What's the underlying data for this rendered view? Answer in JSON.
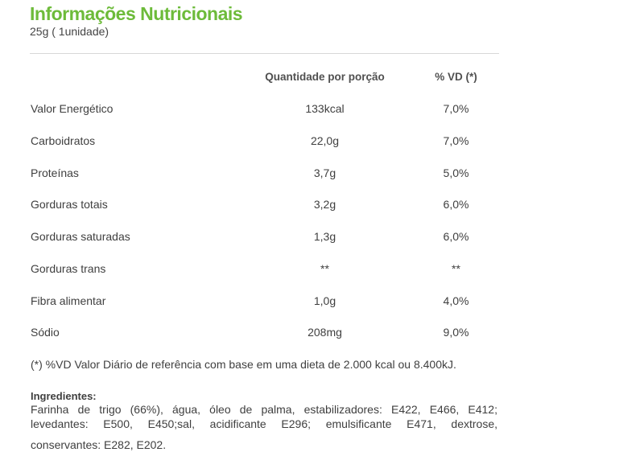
{
  "title": "Informações Nutricionais",
  "portion": "25g ( 1unidade)",
  "table": {
    "headers": {
      "quantity": "Quantidade por porção",
      "vd": "% VD (*)"
    },
    "rows": [
      {
        "name": "Valor Energético",
        "quantity": "133kcal",
        "vd": "7,0%"
      },
      {
        "name": "Carboidratos",
        "quantity": "22,0g",
        "vd": "7,0%"
      },
      {
        "name": "Proteínas",
        "quantity": "3,7g",
        "vd": "5,0%"
      },
      {
        "name": "Gorduras totais",
        "quantity": "3,2g",
        "vd": "6,0%"
      },
      {
        "name": "Gorduras saturadas",
        "quantity": "1,3g",
        "vd": "6,0%"
      },
      {
        "name": "Gorduras trans",
        "quantity": "**",
        "vd": "**"
      },
      {
        "name": "Fibra alimentar",
        "quantity": "1,0g",
        "vd": "4,0%"
      },
      {
        "name": "Sódio",
        "quantity": "208mg",
        "vd": "9,0%"
      }
    ]
  },
  "footnote": "(*) %VD Valor Diário de referência com base em uma dieta de 2.000 kcal ou 8.400kJ.",
  "ingredients": {
    "title": "Ingredientes:",
    "lines": [
      "Farinha de trigo (66%), água, óleo de palma, estabilizadores: E422, E466, E412;",
      "levedantes: E500, E450;sal, acidificante E296; emulsificante E471, dextrose,",
      "conservantes: E282, E202."
    ]
  }
}
